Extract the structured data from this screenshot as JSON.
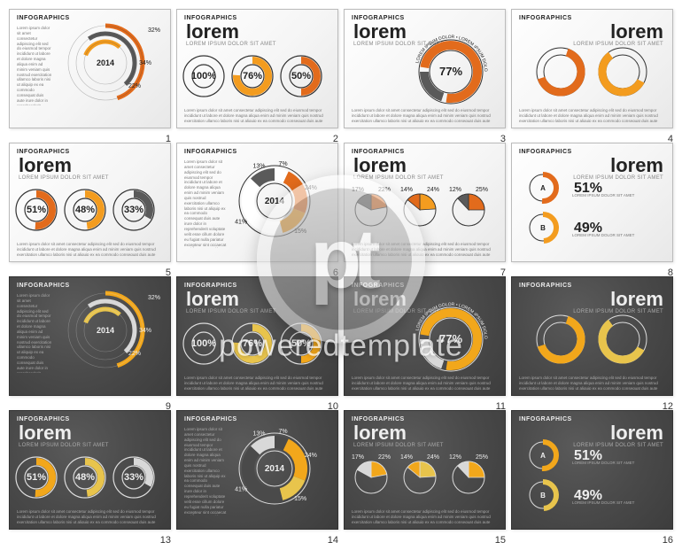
{
  "watermark": {
    "logo": "pt",
    "text": "poweredtemplate"
  },
  "common": {
    "tag": "INFOGRAPHICS",
    "title": "lorem",
    "subtitle": "LOREM IPSUM DOLOR SIT AMET",
    "body": "Lorem ipsum dolor sit amet consectetur adipiscing elit sed do eiusmod tempor incididunt ut labore et dolore magna aliqua enim ad minim veniam quis nostrud exercitation ullamco laboris nisi ut aliquip ex ea commodo consequat duis aute irure dolor in reprehenderit voluptate velit esse cillum dolore eu fugiat nulla pariatur excepteur sint occaecat cupidatat non proident sunt in culpa qui officia deserunt mollit anim id est laborum sed ut perspiciatis unde omnis iste natus error sit voluptatem accusantium doloremque laudantium totam rem aperiam eaque ipsa quae ab illo inventore veritatis."
  },
  "light": {
    "bg": "#f5f5f5",
    "fg": "#222222",
    "muted": "#888888",
    "accent1": "#e26b1c",
    "accent2": "#f39c1f",
    "accent3": "#5a5a5a",
    "ring_outline": "#333333"
  },
  "dark": {
    "bg": "#4a4a4a",
    "fg": "#eeeeee",
    "muted": "#aaaaaa",
    "accent1": "#f2a71b",
    "accent2": "#e8c44c",
    "accent3": "#d8d8d8",
    "ring_outline": "#dddddd"
  },
  "slides": [
    {
      "n": 1,
      "theme": "light",
      "layout": "orbit",
      "year": "2014",
      "arcs": [
        {
          "pct": 32,
          "color": "#e26b1c"
        },
        {
          "pct": 34,
          "color": "#5a5a5a"
        },
        {
          "pct": 22,
          "color": "#f39c1f"
        }
      ]
    },
    {
      "n": 2,
      "theme": "light",
      "layout": "three-rings",
      "rings": [
        {
          "pct": 100,
          "stroke": "#333",
          "fill": "#e26b1c"
        },
        {
          "pct": 76,
          "stroke": "#333",
          "fill": "#f39c1f"
        },
        {
          "pct": 50,
          "stroke": "#333",
          "fill": "#e26b1c"
        }
      ]
    },
    {
      "n": 3,
      "theme": "light",
      "layout": "big-arc",
      "label": "77%",
      "curved_text": "LOREM IPSUM DOLOR"
    },
    {
      "n": 4,
      "theme": "light",
      "layout": "two-arcs",
      "a": {
        "color": "#e26b1c"
      },
      "b": {
        "color": "#f39c1f"
      }
    },
    {
      "n": 5,
      "theme": "light",
      "layout": "three-rings",
      "rings": [
        {
          "pct": 51,
          "stroke": "#333",
          "fill": "#e26b1c"
        },
        {
          "pct": 48,
          "stroke": "#333",
          "fill": "#f39c1f"
        },
        {
          "pct": 33,
          "stroke": "#333",
          "fill": "#5a5a5a"
        }
      ]
    },
    {
      "n": 6,
      "theme": "light",
      "layout": "segmented",
      "year": "2014",
      "segs": [
        {
          "pct": 7,
          "color": "#ffffff"
        },
        {
          "pct": 24,
          "color": "#e26b1c"
        },
        {
          "pct": 15,
          "color": "#f39c1f"
        },
        {
          "pct": 41,
          "color": "#ffffff"
        },
        {
          "pct": 13,
          "color": "#5a5a5a"
        }
      ]
    },
    {
      "n": 7,
      "theme": "light",
      "layout": "three-pies",
      "pies": [
        {
          "a": 22,
          "b": 17,
          "c1": "#e26b1c",
          "c2": "#5a5a5a"
        },
        {
          "a": 24,
          "b": 14,
          "c1": "#f39c1f",
          "c2": "#e26b1c"
        },
        {
          "a": 25,
          "b": 12,
          "c1": "#e26b1c",
          "c2": "#5a5a5a"
        }
      ]
    },
    {
      "n": 8,
      "theme": "light",
      "layout": "ab",
      "a": {
        "label": "A",
        "pct": 51,
        "color": "#e26b1c"
      },
      "b": {
        "label": "B",
        "pct": 49,
        "color": "#f39c1f"
      }
    },
    {
      "n": 9,
      "theme": "dark",
      "layout": "orbit",
      "year": "2014",
      "arcs": [
        {
          "pct": 32,
          "color": "#f2a71b"
        },
        {
          "pct": 34,
          "color": "#d8d8d8"
        },
        {
          "pct": 22,
          "color": "#e8c44c"
        }
      ]
    },
    {
      "n": 10,
      "theme": "dark",
      "layout": "three-rings",
      "rings": [
        {
          "pct": 100,
          "stroke": "#ddd",
          "fill": "#f2a71b"
        },
        {
          "pct": 76,
          "stroke": "#ddd",
          "fill": "#e8c44c"
        },
        {
          "pct": 50,
          "stroke": "#ddd",
          "fill": "#f2a71b"
        }
      ]
    },
    {
      "n": 11,
      "theme": "dark",
      "layout": "big-arc",
      "label": "77%",
      "curved_text": "LOREM IPSUM DOLOR"
    },
    {
      "n": 12,
      "theme": "dark",
      "layout": "two-arcs",
      "a": {
        "color": "#f2a71b"
      },
      "b": {
        "color": "#e8c44c"
      }
    },
    {
      "n": 13,
      "theme": "dark",
      "layout": "three-rings",
      "rings": [
        {
          "pct": 51,
          "stroke": "#ddd",
          "fill": "#f2a71b"
        },
        {
          "pct": 48,
          "stroke": "#ddd",
          "fill": "#e8c44c"
        },
        {
          "pct": 33,
          "stroke": "#ddd",
          "fill": "#d8d8d8"
        }
      ]
    },
    {
      "n": 14,
      "theme": "dark",
      "layout": "segmented",
      "year": "2014",
      "segs": [
        {
          "pct": 7,
          "color": "#4a4a4a"
        },
        {
          "pct": 24,
          "color": "#f2a71b"
        },
        {
          "pct": 15,
          "color": "#e8c44c"
        },
        {
          "pct": 41,
          "color": "#4a4a4a"
        },
        {
          "pct": 13,
          "color": "#d8d8d8"
        }
      ]
    },
    {
      "n": 15,
      "theme": "dark",
      "layout": "three-pies",
      "pies": [
        {
          "a": 22,
          "b": 17,
          "c1": "#f2a71b",
          "c2": "#d8d8d8"
        },
        {
          "a": 24,
          "b": 14,
          "c1": "#e8c44c",
          "c2": "#f2a71b"
        },
        {
          "a": 25,
          "b": 12,
          "c1": "#f2a71b",
          "c2": "#d8d8d8"
        }
      ]
    },
    {
      "n": 16,
      "theme": "dark",
      "layout": "ab",
      "a": {
        "label": "A",
        "pct": 51,
        "color": "#f2a71b"
      },
      "b": {
        "label": "B",
        "pct": 49,
        "color": "#e8c44c"
      }
    }
  ]
}
